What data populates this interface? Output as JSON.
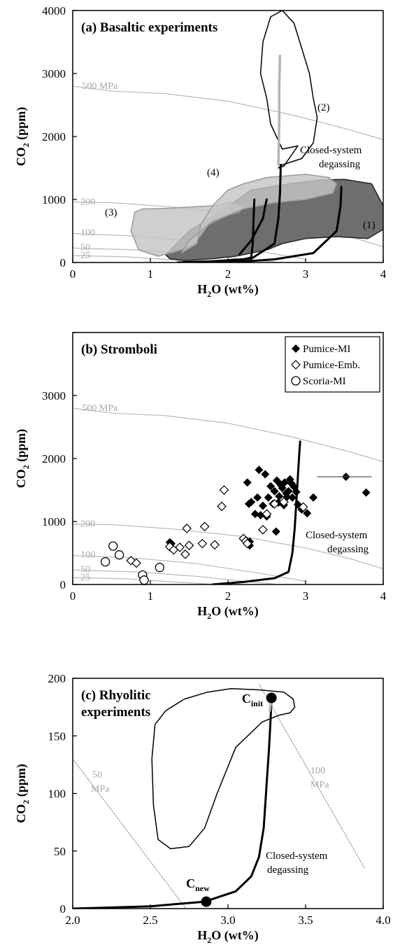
{
  "chart_data": [
    {
      "type": "line",
      "title": "(a) Basaltic experiments",
      "xlabel": "H2O (wt%)",
      "ylabel": "CO2 (ppm)",
      "xlim": [
        0,
        4
      ],
      "ylim": [
        0,
        4000
      ],
      "xticks": [
        "0",
        "1",
        "2",
        "3",
        "4"
      ],
      "yticks": [
        "0",
        "1000",
        "2000",
        "3000",
        "4000"
      ],
      "isobars": [
        {
          "label": "500 MPa",
          "x": [
            0,
            0.5,
            1.2,
            2.0,
            2.8,
            3.5,
            4.0
          ],
          "y": [
            2800,
            2720,
            2680,
            2560,
            2350,
            2130,
            1950
          ]
        },
        {
          "label": "200",
          "x": [
            0,
            0.5,
            1.3,
            2.2,
            3.0,
            3.6,
            4.0
          ],
          "y": [
            960,
            950,
            880,
            760,
            580,
            400,
            250
          ]
        },
        {
          "label": "100",
          "x": [
            0,
            0.8,
            1.6,
            2.4,
            3.0
          ],
          "y": [
            460,
            420,
            330,
            180,
            50
          ]
        },
        {
          "label": "50",
          "x": [
            0,
            0.8,
            1.6,
            2.2,
            2.6
          ],
          "y": [
            230,
            200,
            130,
            50,
            10
          ]
        },
        {
          "label": "25",
          "x": [
            0,
            0.7,
            1.3,
            1.8
          ],
          "y": [
            110,
            90,
            40,
            5
          ]
        }
      ],
      "regions": [
        {
          "label": "(1)",
          "fill": "dark-gray",
          "x": [
            1.25,
            1.45,
            1.8,
            2.1,
            2.5,
            2.7,
            3.0,
            3.4,
            3.8,
            4.05,
            4.0,
            3.85,
            3.5,
            3.2,
            2.8,
            2.3,
            1.9,
            1.5,
            1.3,
            1.2,
            1.25
          ],
          "y": [
            60,
            30,
            60,
            100,
            200,
            300,
            380,
            410,
            380,
            560,
            900,
            1250,
            1320,
            1310,
            1250,
            1150,
            800,
            500,
            250,
            120,
            60
          ]
        },
        {
          "label": "(2)",
          "fill": "none",
          "x": [
            2.9,
            2.72,
            2.65,
            2.7,
            2.95,
            3.1,
            3.15,
            3.1,
            3.05,
            2.95,
            2.85,
            2.7,
            2.55,
            2.45,
            2.42,
            2.5,
            2.55,
            2.7,
            2.9
          ],
          "y": [
            1850,
            1530,
            1500,
            1550,
            1650,
            1900,
            2300,
            2600,
            3000,
            3400,
            3800,
            4000,
            3900,
            3500,
            3000,
            2600,
            2200,
            1800,
            1850
          ]
        },
        {
          "label": "(3)",
          "fill": "light-gray",
          "x": [
            0.75,
            0.85,
            1.1,
            1.4,
            1.6,
            1.75,
            2.0,
            2.15,
            2.2,
            2.0,
            1.8,
            1.5,
            1.2,
            0.9,
            0.8,
            0.75
          ],
          "y": [
            500,
            200,
            100,
            200,
            350,
            600,
            750,
            800,
            900,
            950,
            900,
            880,
            860,
            850,
            800,
            500
          ]
        },
        {
          "label": "(4)",
          "fill": "light-gray",
          "x": [
            1.4,
            1.5,
            1.8,
            2.2,
            2.6,
            3.0,
            3.35,
            3.4,
            3.3,
            3.0,
            2.5,
            2.2,
            2.0,
            1.8,
            1.65,
            1.6,
            1.4
          ],
          "y": [
            150,
            350,
            650,
            850,
            950,
            1000,
            1100,
            1250,
            1350,
            1400,
            1350,
            1250,
            1150,
            900,
            600,
            300,
            150
          ]
        }
      ],
      "series": [
        {
          "type": "line",
          "color": "#000000",
          "x": [
            1.35,
            1.8,
            2.3,
            2.6,
            2.65,
            2.67,
            2.68
          ],
          "y": [
            0,
            20,
            60,
            300,
            700,
            1100,
            1550
          ]
        },
        {
          "type": "line",
          "color": "#000000",
          "x": [
            1.85,
            2.1,
            2.3,
            2.32,
            2.33,
            2.34
          ],
          "y": [
            0,
            20,
            80,
            300,
            700,
            1000
          ]
        },
        {
          "type": "line",
          "color": "#000000",
          "x": [
            2.0,
            2.6,
            3.1,
            3.4,
            3.45,
            3.46
          ],
          "y": [
            0,
            50,
            150,
            500,
            900,
            1200
          ]
        },
        {
          "type": "line",
          "color": "#000000",
          "x": [
            2.15,
            2.3,
            2.45,
            2.48,
            2.5
          ],
          "y": [
            130,
            350,
            700,
            900,
            1000
          ]
        },
        {
          "type": "line",
          "color": "#b4b4b4",
          "x": [
            2.65,
            2.66,
            2.66,
            2.67
          ],
          "y": [
            1550,
            2200,
            2800,
            3280
          ]
        }
      ],
      "annotations": [
        "(1)",
        "(2)",
        "(3)",
        "(4)",
        "Closed-system",
        "degassing"
      ],
      "grid": false
    },
    {
      "type": "scatter",
      "title": "(b) Stromboli",
      "xlabel": "H2O (wt%)",
      "ylabel": "CO2 (ppm)",
      "xlim": [
        0,
        4
      ],
      "ylim": [
        0,
        4000
      ],
      "xticks": [
        "0",
        "1",
        "2",
        "3",
        "4"
      ],
      "yticks": [
        "0",
        "1000",
        "2000",
        "3000",
        "4000"
      ],
      "legend": {
        "position": "top-right",
        "entries": [
          "Pumice-MI",
          "Pumice-Emb.",
          "Scoria-MI"
        ]
      },
      "isobars": [
        {
          "label": "500 MPa",
          "x": [
            0,
            0.5,
            1.2,
            2.0,
            2.8,
            3.5,
            4.0
          ],
          "y": [
            2800,
            2720,
            2680,
            2560,
            2350,
            2130,
            1950
          ]
        },
        {
          "label": "200",
          "x": [
            0,
            0.5,
            1.3,
            2.2,
            3.0,
            3.6,
            4.0
          ],
          "y": [
            960,
            950,
            880,
            760,
            580,
            400,
            250
          ]
        },
        {
          "label": "100",
          "x": [
            0,
            0.8,
            1.6,
            2.4,
            3.0
          ],
          "y": [
            460,
            420,
            330,
            180,
            50
          ]
        },
        {
          "label": "50",
          "x": [
            0,
            0.8,
            1.6,
            2.2,
            2.6
          ],
          "y": [
            230,
            200,
            130,
            50,
            10
          ]
        },
        {
          "label": "25",
          "x": [
            0,
            0.7,
            1.3,
            1.8
          ],
          "y": [
            110,
            90,
            40,
            5
          ]
        }
      ],
      "series": [
        {
          "name": "Pumice-MI",
          "marker": "filled-diamond",
          "x": [
            2.25,
            2.27,
            2.28,
            2.3,
            2.35,
            2.38,
            2.4,
            2.42,
            2.45,
            2.48,
            2.5,
            2.52,
            2.55,
            2.58,
            2.6,
            2.62,
            2.63,
            2.65,
            2.66,
            2.68,
            2.7,
            2.72,
            2.73,
            2.75,
            2.76,
            2.78,
            2.8,
            2.82,
            2.83,
            2.85,
            2.88,
            2.9,
            2.95,
            3.02,
            3.1,
            1.25,
            1.27,
            2.28,
            3.52,
            3.78
          ],
          "y": [
            1620,
            1280,
            620,
            1310,
            1120,
            1380,
            1820,
            1100,
            1250,
            1750,
            1080,
            1380,
            1560,
            1280,
            1480,
            840,
            1650,
            1300,
            1400,
            1580,
            1530,
            1260,
            1620,
            1450,
            1390,
            1480,
            1670,
            1600,
            1380,
            1550,
            1470,
            1270,
            1190,
            1130,
            1380,
            670,
            650,
            680,
            1710,
            1460
          ]
        },
        {
          "name": "Pumice-Emb.",
          "marker": "open-diamond",
          "x": [
            0.75,
            0.82,
            1.25,
            1.3,
            1.38,
            1.45,
            1.47,
            1.5,
            1.67,
            1.7,
            1.83,
            1.92,
            1.95,
            2.2,
            2.23,
            2.25,
            2.45,
            2.5,
            2.6,
            2.72,
            2.97
          ],
          "y": [
            380,
            340,
            600,
            550,
            590,
            480,
            890,
            620,
            650,
            920,
            630,
            1240,
            1500,
            730,
            690,
            650,
            870,
            1120,
            1280,
            1310,
            1230
          ]
        },
        {
          "name": "Scoria-MI",
          "marker": "open-circle",
          "x": [
            0.42,
            0.52,
            0.6,
            0.9,
            0.92,
            1.12
          ],
          "y": [
            360,
            610,
            470,
            150,
            70,
            270
          ]
        },
        {
          "name": "",
          "type": "line",
          "color": "#000000",
          "x": [
            1.8,
            2.2,
            2.6,
            2.78,
            2.83,
            2.86,
            2.88,
            2.9,
            2.92,
            2.93
          ],
          "y": [
            0,
            40,
            100,
            200,
            500,
            900,
            1300,
            1700,
            2100,
            2270
          ]
        }
      ],
      "error_bar": {
        "x": 3.52,
        "y": 1710,
        "x_range": [
          3.15,
          3.85
        ]
      },
      "annotations": [
        "Closed-system",
        "degassing"
      ],
      "grid": false
    },
    {
      "type": "line",
      "title": "(c) Rhyolitic experiments",
      "title_lines": [
        "(c) Rhyolitic",
        "experiments"
      ],
      "xlabel": "H2O (wt%)",
      "ylabel": "CO2 (ppm)",
      "xlim": [
        2.0,
        4.0
      ],
      "ylim": [
        0,
        200
      ],
      "xticks": [
        "2.0",
        "2.5",
        "3.0",
        "3.5",
        "4.0"
      ],
      "yticks": [
        "0",
        "50",
        "100",
        "150",
        "200"
      ],
      "isobars": [
        {
          "label_lines": [
            "50",
            "MPa"
          ],
          "x": [
            2.0,
            2.73
          ],
          "y": [
            130,
            0
          ]
        },
        {
          "label_lines": [
            "100",
            "MPa"
          ],
          "x": [
            3.2,
            3.88
          ],
          "y": [
            195,
            35
          ]
        }
      ],
      "regions": [
        {
          "fill": "none",
          "x": [
            3.2,
            3.36,
            3.42,
            3.43,
            3.4,
            3.33,
            3.22,
            3.05,
            2.93,
            2.85,
            2.75,
            2.63,
            2.55,
            2.52,
            2.51,
            2.53,
            2.6,
            2.72,
            2.87,
            3.02,
            3.2
          ],
          "y": [
            190,
            188,
            182,
            175,
            170,
            168,
            162,
            140,
            100,
            70,
            54,
            52,
            60,
            90,
            130,
            160,
            172,
            182,
            188,
            191,
            190
          ]
        }
      ],
      "series": [
        {
          "type": "line",
          "color": "#000000",
          "x": [
            2.0,
            2.5,
            2.85,
            3.05,
            3.15,
            3.2,
            3.23,
            3.25,
            3.265,
            3.275,
            3.28
          ],
          "y": [
            0,
            2,
            6,
            15,
            28,
            45,
            70,
            110,
            140,
            165,
            183
          ]
        },
        {
          "type": "line",
          "color": "#b4b4b4",
          "x": [
            3.27,
            3.28
          ],
          "y": [
            172,
            183
          ]
        },
        {
          "type": "scatter",
          "marker": "filled-circle",
          "x": [
            2.86,
            3.28
          ],
          "y": [
            6,
            183
          ]
        }
      ],
      "point_labels": [
        {
          "base": "C",
          "sub": "new"
        },
        {
          "base": "C",
          "sub": "init"
        }
      ],
      "annotations": [
        "Closed-system",
        "degassing"
      ],
      "grid": false
    }
  ]
}
